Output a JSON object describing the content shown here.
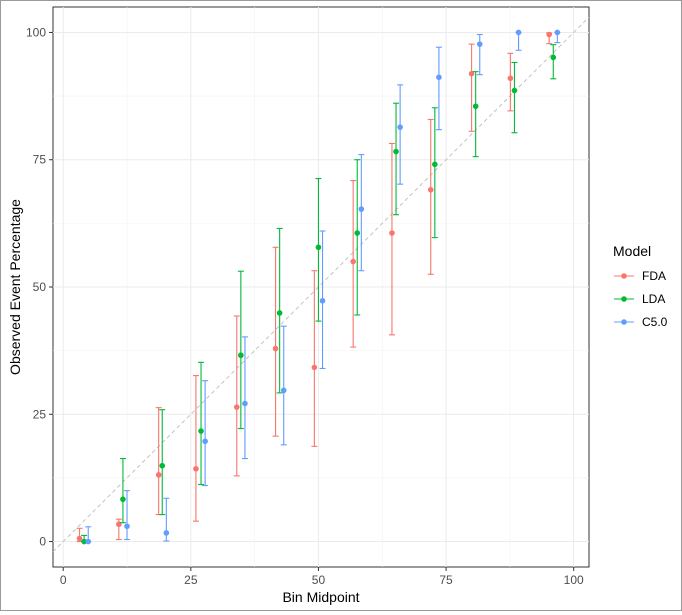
{
  "chart_data": {
    "type": "scatter",
    "title": "",
    "xlabel": "Bin Midpoint",
    "ylabel": "Observed Event Percentage",
    "xlim": [
      -2,
      103
    ],
    "ylim": [
      -5,
      105
    ],
    "x_ticks": [
      0,
      25,
      50,
      75,
      100
    ],
    "y_ticks": [
      0,
      25,
      50,
      75,
      100
    ],
    "x_tick_labels": [
      "0",
      "25",
      "50",
      "75",
      "100"
    ],
    "y_tick_labels": [
      "0",
      "25",
      "50",
      "75",
      "100"
    ],
    "grid": true,
    "reference_line": "diagonal y = x (dashed)",
    "legend": {
      "title": "Model",
      "placement": "right"
    },
    "series": [
      {
        "name": "FDA",
        "color": "#F8766D",
        "points": [
          {
            "x": 3.2,
            "y": 0.6,
            "lower": 0.0,
            "upper": 2.6
          },
          {
            "x": 10.9,
            "y": 3.4,
            "lower": 0.4,
            "upper": 4.4
          },
          {
            "x": 18.7,
            "y": 13.1,
            "lower": 5.3,
            "upper": 26.3
          },
          {
            "x": 26.0,
            "y": 14.3,
            "lower": 4.0,
            "upper": 32.6
          },
          {
            "x": 34.0,
            "y": 26.4,
            "lower": 12.9,
            "upper": 44.3
          },
          {
            "x": 41.6,
            "y": 37.9,
            "lower": 20.7,
            "upper": 57.8
          },
          {
            "x": 49.2,
            "y": 34.2,
            "lower": 18.7,
            "upper": 53.2
          },
          {
            "x": 56.8,
            "y": 55.0,
            "lower": 38.2,
            "upper": 70.9
          },
          {
            "x": 64.4,
            "y": 60.6,
            "lower": 40.6,
            "upper": 78.2
          },
          {
            "x": 72.0,
            "y": 69.1,
            "lower": 52.5,
            "upper": 82.9
          },
          {
            "x": 80.0,
            "y": 91.9,
            "lower": 80.6,
            "upper": 97.7
          },
          {
            "x": 87.6,
            "y": 91.0,
            "lower": 84.6,
            "upper": 95.9
          },
          {
            "x": 95.2,
            "y": 99.6,
            "lower": 97.8,
            "upper": 99.9
          }
        ]
      },
      {
        "name": "LDA",
        "color": "#00BA38",
        "points": [
          {
            "x": 4.1,
            "y": 0.0,
            "lower": 0.0,
            "upper": 1.2
          },
          {
            "x": 11.7,
            "y": 8.3,
            "lower": 3.7,
            "upper": 16.3
          },
          {
            "x": 19.4,
            "y": 14.9,
            "lower": 5.3,
            "upper": 25.9
          },
          {
            "x": 27.0,
            "y": 21.7,
            "lower": 11.2,
            "upper": 35.2
          },
          {
            "x": 34.8,
            "y": 36.6,
            "lower": 22.2,
            "upper": 53.1
          },
          {
            "x": 42.4,
            "y": 44.9,
            "lower": 29.2,
            "upper": 61.5
          },
          {
            "x": 50.0,
            "y": 57.8,
            "lower": 43.3,
            "upper": 71.3
          },
          {
            "x": 57.6,
            "y": 60.6,
            "lower": 44.5,
            "upper": 75.0
          },
          {
            "x": 65.2,
            "y": 76.6,
            "lower": 64.2,
            "upper": 86.1
          },
          {
            "x": 72.8,
            "y": 74.1,
            "lower": 59.7,
            "upper": 85.2
          },
          {
            "x": 80.8,
            "y": 85.5,
            "lower": 75.6,
            "upper": 92.3
          },
          {
            "x": 88.4,
            "y": 88.6,
            "lower": 80.3,
            "upper": 94.1
          },
          {
            "x": 96.0,
            "y": 95.1,
            "lower": 90.9,
            "upper": 97.6
          }
        ]
      },
      {
        "name": "C5.0",
        "color": "#619CFF",
        "points": [
          {
            "x": 4.9,
            "y": 0.0,
            "lower": 0.0,
            "upper": 2.9
          },
          {
            "x": 12.5,
            "y": 3.0,
            "lower": 0.4,
            "upper": 10.0
          },
          {
            "x": 20.2,
            "y": 1.7,
            "lower": 0.1,
            "upper": 8.5
          },
          {
            "x": 27.8,
            "y": 19.7,
            "lower": 11.0,
            "upper": 31.6
          },
          {
            "x": 35.6,
            "y": 27.1,
            "lower": 16.3,
            "upper": 40.2
          },
          {
            "x": 43.2,
            "y": 29.7,
            "lower": 19.0,
            "upper": 42.3
          },
          {
            "x": 50.8,
            "y": 47.3,
            "lower": 34.0,
            "upper": 61.0
          },
          {
            "x": 58.4,
            "y": 65.3,
            "lower": 53.2,
            "upper": 76.0
          },
          {
            "x": 66.0,
            "y": 81.4,
            "lower": 70.2,
            "upper": 89.7
          },
          {
            "x": 73.6,
            "y": 91.2,
            "lower": 80.9,
            "upper": 97.1
          },
          {
            "x": 81.6,
            "y": 97.7,
            "lower": 91.7,
            "upper": 99.6
          },
          {
            "x": 89.2,
            "y": 100.0,
            "lower": 96.5,
            "upper": 100.0
          },
          {
            "x": 96.8,
            "y": 100.0,
            "lower": 98.0,
            "upper": 100.0
          }
        ]
      }
    ]
  }
}
